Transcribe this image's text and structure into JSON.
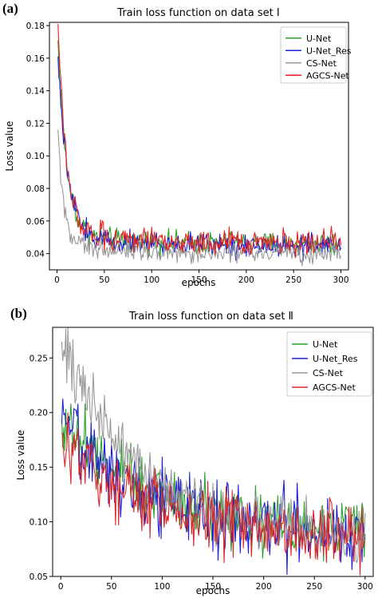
{
  "chart_data": [
    {
      "type": "line",
      "panel_label": "(a)",
      "title": "Train loss function on data set I",
      "xlabel": "epochs",
      "ylabel": "Loss value",
      "xlim": [
        -8,
        308
      ],
      "ylim": [
        0.03,
        0.182
      ],
      "xticks": [
        0,
        50,
        100,
        150,
        200,
        250,
        300
      ],
      "yticks": [
        0.04,
        0.06,
        0.08,
        0.1,
        0.12,
        0.14,
        0.16,
        0.18
      ],
      "ytick_labels": [
        "0.04",
        "0.06",
        "0.08",
        "0.10",
        "0.12",
        "0.14",
        "0.16",
        "0.18"
      ],
      "grid": false,
      "legend": "top-right",
      "epochs": 300,
      "series": [
        {
          "name": "U-Net",
          "color": "#2ca02c",
          "start": 0.165,
          "plateau": 0.046,
          "decay": 9,
          "noise": 0.0035
        },
        {
          "name": "U-Net_Res",
          "color": "#1f1fd6",
          "start": 0.155,
          "plateau": 0.045,
          "decay": 10,
          "noise": 0.0035
        },
        {
          "name": "CS-Net",
          "color": "#999999",
          "start": 0.11,
          "plateau": 0.04,
          "decay": 6,
          "noise": 0.003
        },
        {
          "name": "AGCS-Net",
          "color": "#e8231f",
          "start": 0.175,
          "plateau": 0.047,
          "decay": 9,
          "noise": 0.0038
        }
      ]
    },
    {
      "type": "line",
      "panel_label": "(b)",
      "title": "Train loss function on data set Ⅱ",
      "xlabel": "epochs",
      "ylabel": "Loss value",
      "xlim": [
        -8,
        308
      ],
      "ylim": [
        0.05,
        0.278
      ],
      "xticks": [
        0,
        50,
        100,
        150,
        200,
        250,
        300
      ],
      "yticks": [
        0.05,
        0.1,
        0.15,
        0.2,
        0.25
      ],
      "ytick_labels": [
        "0.05",
        "0.10",
        "0.15",
        "0.20",
        "0.25"
      ],
      "grid": false,
      "legend": "top-right",
      "epochs": 300,
      "series": [
        {
          "name": "U-Net",
          "color": "#2ca02c",
          "start": 0.195,
          "plateau": 0.09,
          "decay": 90,
          "noise": 0.014
        },
        {
          "name": "U-Net_Res",
          "color": "#1f1fd6",
          "start": 0.19,
          "plateau": 0.085,
          "decay": 95,
          "noise": 0.016
        },
        {
          "name": "CS-Net",
          "color": "#999999",
          "start": 0.265,
          "plateau": 0.083,
          "decay": 80,
          "noise": 0.013
        },
        {
          "name": "AGCS-Net",
          "color": "#d62728",
          "start": 0.18,
          "plateau": 0.085,
          "decay": 85,
          "noise": 0.014
        }
      ]
    }
  ]
}
